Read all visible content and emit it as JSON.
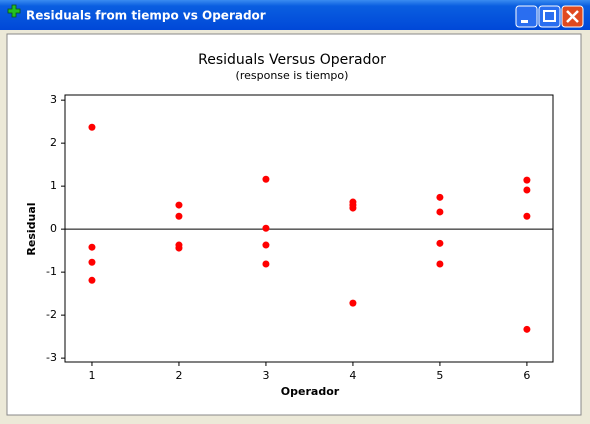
{
  "window": {
    "title": "Residuals from tiempo vs Operador"
  },
  "chart_data": {
    "type": "scatter",
    "title": "Residuals Versus Operador",
    "subtitle": "(response is tiempo)",
    "x_label": "Operador",
    "y_label": "Residual",
    "color": "#ff0000",
    "x": [
      1,
      1,
      1,
      1,
      2,
      2,
      2,
      2,
      3,
      3,
      3,
      3,
      4,
      4,
      4,
      4,
      5,
      5,
      5,
      5,
      6,
      6,
      6,
      6
    ],
    "values": [
      2.37,
      -0.42,
      -0.77,
      -1.19,
      0.56,
      0.3,
      -0.37,
      -0.44,
      1.16,
      0.02,
      -0.37,
      -0.81,
      0.63,
      0.56,
      0.49,
      -1.72,
      0.74,
      0.4,
      -0.33,
      -0.81,
      1.14,
      0.91,
      0.3,
      -2.33
    ],
    "xlim": [
      0.69,
      6.3
    ],
    "ylim": [
      -3.09,
      3.12
    ],
    "xticks": [
      1,
      2,
      3,
      4,
      5,
      6
    ],
    "yticks": [
      -3,
      -2,
      -1,
      0,
      1,
      2,
      3
    ],
    "reference_line": 0
  }
}
